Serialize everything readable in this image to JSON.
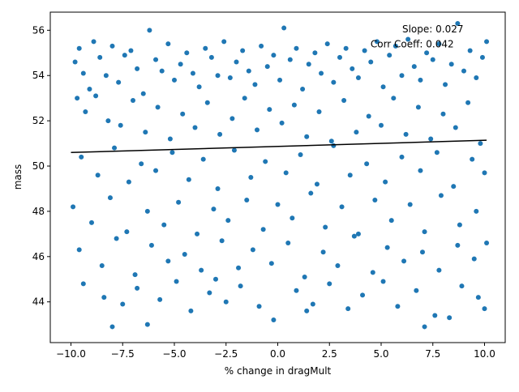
{
  "chart_data": {
    "type": "scatter",
    "title": "",
    "xlabel": "% change in dragMult",
    "ylabel": "mass",
    "xlim": [
      -11.0,
      11.0
    ],
    "ylim": [
      42.2,
      56.8
    ],
    "xticks": [
      -10.0,
      -7.5,
      -5.0,
      -2.5,
      0.0,
      2.5,
      5.0,
      7.5,
      10.0
    ],
    "xtick_labels": [
      "−10.0",
      "−7.5",
      "−5.0",
      "−2.5",
      "0.0",
      "2.5",
      "5.0",
      "7.5",
      "10.0"
    ],
    "yticks": [
      44,
      46,
      48,
      50,
      52,
      54,
      56
    ],
    "ytick_labels": [
      "44",
      "46",
      "48",
      "50",
      "52",
      "54",
      "56"
    ],
    "grid": false,
    "series": [
      {
        "kind": "scatter",
        "color": "#1f77b4",
        "points": [
          [
            -9.8,
            54.6
          ],
          [
            -9.6,
            55.2
          ],
          [
            -9.4,
            54.1
          ],
          [
            -9.1,
            53.4
          ],
          [
            -8.9,
            55.5
          ],
          [
            -8.6,
            54.8
          ],
          [
            -8.3,
            54.0
          ],
          [
            -8.0,
            55.3
          ],
          [
            -7.7,
            53.7
          ],
          [
            -7.4,
            54.9
          ],
          [
            -7.1,
            55.1
          ],
          [
            -6.8,
            54.3
          ],
          [
            -6.5,
            53.2
          ],
          [
            -6.2,
            56.0
          ],
          [
            -5.9,
            54.7
          ],
          [
            -5.6,
            54.2
          ],
          [
            -5.3,
            55.4
          ],
          [
            -5.0,
            53.8
          ],
          [
            -4.7,
            54.5
          ],
          [
            -4.4,
            55.0
          ],
          [
            -4.1,
            54.1
          ],
          [
            -3.8,
            53.5
          ],
          [
            -3.5,
            55.2
          ],
          [
            -3.2,
            54.8
          ],
          [
            -2.9,
            54.0
          ],
          [
            -2.6,
            55.5
          ],
          [
            -2.3,
            53.9
          ],
          [
            -2.0,
            54.6
          ],
          [
            -1.7,
            55.1
          ],
          [
            -1.4,
            54.2
          ],
          [
            -1.1,
            53.6
          ],
          [
            -0.8,
            55.3
          ],
          [
            -0.5,
            54.4
          ],
          [
            -0.2,
            54.9
          ],
          [
            0.1,
            53.8
          ],
          [
            0.3,
            56.1
          ],
          [
            0.6,
            54.7
          ],
          [
            0.9,
            55.2
          ],
          [
            1.2,
            53.4
          ],
          [
            1.5,
            54.5
          ],
          [
            1.8,
            55.0
          ],
          [
            2.1,
            54.1
          ],
          [
            2.4,
            55.4
          ],
          [
            2.7,
            53.7
          ],
          [
            3.0,
            54.8
          ],
          [
            3.3,
            55.2
          ],
          [
            3.6,
            54.3
          ],
          [
            3.9,
            53.9
          ],
          [
            4.2,
            55.1
          ],
          [
            4.5,
            54.6
          ],
          [
            4.8,
            55.5
          ],
          [
            5.1,
            53.5
          ],
          [
            5.4,
            54.9
          ],
          [
            5.7,
            55.3
          ],
          [
            6.0,
            54.0
          ],
          [
            6.3,
            55.6
          ],
          [
            6.6,
            54.4
          ],
          [
            6.9,
            53.8
          ],
          [
            7.2,
            55.0
          ],
          [
            7.5,
            54.7
          ],
          [
            7.8,
            55.4
          ],
          [
            8.1,
            53.6
          ],
          [
            8.4,
            54.5
          ],
          [
            8.7,
            56.3
          ],
          [
            9.0,
            54.2
          ],
          [
            9.3,
            55.1
          ],
          [
            9.6,
            53.9
          ],
          [
            9.9,
            54.8
          ],
          [
            10.1,
            55.5
          ],
          [
            -9.7,
            53.0
          ],
          [
            -9.3,
            52.4
          ],
          [
            -8.8,
            53.1
          ],
          [
            -8.2,
            52.0
          ],
          [
            -7.6,
            51.8
          ],
          [
            -7.0,
            52.9
          ],
          [
            -6.4,
            51.5
          ],
          [
            -5.8,
            52.6
          ],
          [
            -5.2,
            51.2
          ],
          [
            -4.6,
            52.3
          ],
          [
            -4.0,
            51.7
          ],
          [
            -3.4,
            52.8
          ],
          [
            -2.8,
            51.4
          ],
          [
            -2.2,
            52.1
          ],
          [
            -1.6,
            53.0
          ],
          [
            -1.0,
            51.6
          ],
          [
            -0.4,
            52.5
          ],
          [
            0.2,
            51.9
          ],
          [
            0.8,
            52.7
          ],
          [
            1.4,
            51.3
          ],
          [
            2.0,
            52.4
          ],
          [
            2.6,
            51.1
          ],
          [
            3.2,
            52.9
          ],
          [
            3.8,
            51.5
          ],
          [
            4.4,
            52.2
          ],
          [
            5.0,
            51.8
          ],
          [
            5.6,
            53.0
          ],
          [
            6.2,
            51.4
          ],
          [
            6.8,
            52.6
          ],
          [
            7.4,
            51.2
          ],
          [
            8.0,
            52.3
          ],
          [
            8.6,
            51.7
          ],
          [
            9.2,
            52.8
          ],
          [
            9.8,
            51.0
          ],
          [
            -9.5,
            50.4
          ],
          [
            -8.7,
            49.6
          ],
          [
            -7.9,
            50.8
          ],
          [
            -7.2,
            49.3
          ],
          [
            -6.6,
            50.1
          ],
          [
            -5.9,
            49.8
          ],
          [
            -5.1,
            50.6
          ],
          [
            -4.3,
            49.4
          ],
          [
            -3.6,
            50.3
          ],
          [
            -2.9,
            49.0
          ],
          [
            -2.1,
            50.7
          ],
          [
            -1.3,
            49.5
          ],
          [
            -0.6,
            50.2
          ],
          [
            0.4,
            49.7
          ],
          [
            1.1,
            50.5
          ],
          [
            1.9,
            49.2
          ],
          [
            2.7,
            50.9
          ],
          [
            3.5,
            49.6
          ],
          [
            4.3,
            50.1
          ],
          [
            5.2,
            49.3
          ],
          [
            6.0,
            50.4
          ],
          [
            6.9,
            49.8
          ],
          [
            7.7,
            50.6
          ],
          [
            8.5,
            49.1
          ],
          [
            9.4,
            50.3
          ],
          [
            10.0,
            49.7
          ],
          [
            -9.9,
            48.2
          ],
          [
            -9.0,
            47.5
          ],
          [
            -8.1,
            48.6
          ],
          [
            -7.3,
            47.1
          ],
          [
            -6.3,
            48.0
          ],
          [
            -5.5,
            47.4
          ],
          [
            -4.8,
            48.4
          ],
          [
            -3.9,
            47.0
          ],
          [
            -3.1,
            48.1
          ],
          [
            -2.4,
            47.6
          ],
          [
            -1.5,
            48.5
          ],
          [
            -0.7,
            47.2
          ],
          [
            0.0,
            48.3
          ],
          [
            0.7,
            47.7
          ],
          [
            1.6,
            48.8
          ],
          [
            2.3,
            47.3
          ],
          [
            3.1,
            48.2
          ],
          [
            3.9,
            47.0
          ],
          [
            4.7,
            48.5
          ],
          [
            5.5,
            47.6
          ],
          [
            6.4,
            48.3
          ],
          [
            7.1,
            47.1
          ],
          [
            7.9,
            48.7
          ],
          [
            8.8,
            47.4
          ],
          [
            9.6,
            48.0
          ],
          [
            -9.6,
            46.3
          ],
          [
            -8.5,
            45.6
          ],
          [
            -7.8,
            46.8
          ],
          [
            -6.9,
            45.2
          ],
          [
            -6.1,
            46.5
          ],
          [
            -5.3,
            45.8
          ],
          [
            -4.5,
            46.1
          ],
          [
            -3.7,
            45.4
          ],
          [
            -2.7,
            46.7
          ],
          [
            -1.9,
            45.5
          ],
          [
            -1.2,
            46.3
          ],
          [
            -0.3,
            45.7
          ],
          [
            0.5,
            46.6
          ],
          [
            1.3,
            45.1
          ],
          [
            2.2,
            46.2
          ],
          [
            2.9,
            45.6
          ],
          [
            3.7,
            46.9
          ],
          [
            4.6,
            45.3
          ],
          [
            5.3,
            46.4
          ],
          [
            6.1,
            45.8
          ],
          [
            7.0,
            46.2
          ],
          [
            7.8,
            45.4
          ],
          [
            8.7,
            46.5
          ],
          [
            9.5,
            45.9
          ],
          [
            10.1,
            46.6
          ],
          [
            -9.4,
            44.8
          ],
          [
            -8.4,
            44.2
          ],
          [
            -7.5,
            43.9
          ],
          [
            -6.8,
            44.6
          ],
          [
            -6.3,
            43.0
          ],
          [
            -5.7,
            44.1
          ],
          [
            -4.9,
            44.9
          ],
          [
            -4.2,
            43.6
          ],
          [
            -3.3,
            44.4
          ],
          [
            -2.5,
            44.0
          ],
          [
            -1.8,
            44.7
          ],
          [
            -0.9,
            43.8
          ],
          [
            -0.2,
            43.2
          ],
          [
            0.9,
            44.5
          ],
          [
            1.7,
            43.9
          ],
          [
            2.5,
            44.8
          ],
          [
            3.4,
            43.7
          ],
          [
            4.1,
            44.3
          ],
          [
            5.1,
            44.9
          ],
          [
            5.8,
            43.8
          ],
          [
            6.7,
            44.5
          ],
          [
            7.1,
            42.9
          ],
          [
            7.6,
            43.4
          ],
          [
            8.3,
            43.3
          ],
          [
            8.9,
            44.7
          ],
          [
            9.7,
            44.2
          ],
          [
            10.0,
            43.7
          ],
          [
            -8.0,
            42.9
          ],
          [
            1.4,
            43.6
          ],
          [
            -3.0,
            45.0
          ]
        ]
      },
      {
        "kind": "line",
        "color": "#000000",
        "points": [
          [
            -10.0,
            50.6
          ],
          [
            10.1,
            51.14
          ]
        ]
      }
    ],
    "annotations": [
      {
        "text": "Slope: 0.027",
        "x": 7.5,
        "y": 55.9
      },
      {
        "text": "Corr Coeff: 0.042",
        "x": 6.5,
        "y": 55.25
      }
    ]
  }
}
